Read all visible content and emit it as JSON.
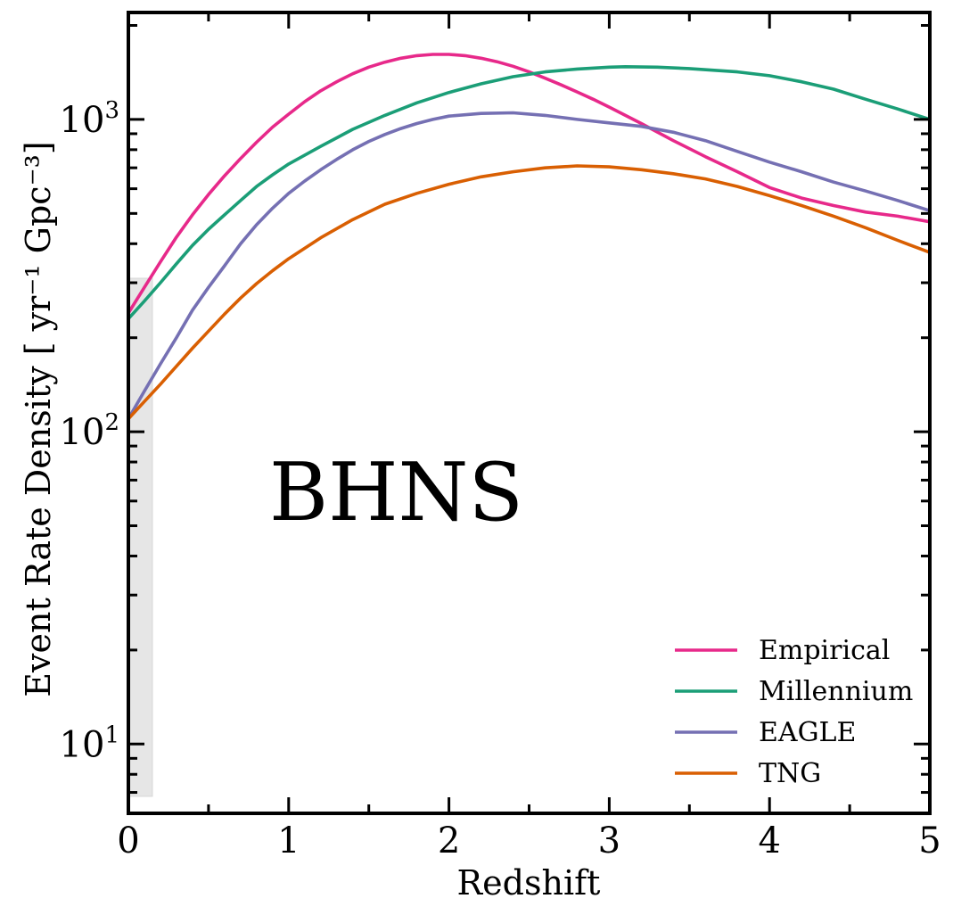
{
  "chart_data": {
    "type": "line",
    "title": "",
    "xlabel": "Redshift",
    "ylabel": "Event Rate Density [ yr⁻¹ Gpc⁻³]",
    "xlim": [
      0,
      5
    ],
    "ylim": [
      6,
      2200
    ],
    "yscale": "log",
    "grid": false,
    "legend_position": "bottom-right",
    "annotation": "BHNS",
    "x_ticks": [
      {
        "value": 0,
        "label": "0"
      },
      {
        "value": 1,
        "label": "1"
      },
      {
        "value": 2,
        "label": "2"
      },
      {
        "value": 3,
        "label": "3"
      },
      {
        "value": 4,
        "label": "4"
      },
      {
        "value": 5,
        "label": "5"
      }
    ],
    "y_ticks": [
      {
        "value": 10,
        "base": "10",
        "exp": "1"
      },
      {
        "value": 100,
        "base": "10",
        "exp": "2"
      },
      {
        "value": 1000,
        "base": "10",
        "exp": "3"
      }
    ],
    "shaded_region": {
      "x": [
        0,
        0.15
      ],
      "y": [
        6.8,
        310
      ],
      "color": "#e6e6e6"
    },
    "series": [
      {
        "name": "Empirical",
        "color": "#e7298a",
        "points": [
          [
            0,
            240
          ],
          [
            0.1,
            290
          ],
          [
            0.2,
            350
          ],
          [
            0.3,
            420
          ],
          [
            0.4,
            495
          ],
          [
            0.5,
            575
          ],
          [
            0.6,
            660
          ],
          [
            0.7,
            750
          ],
          [
            0.8,
            845
          ],
          [
            0.9,
            945
          ],
          [
            1.0,
            1040
          ],
          [
            1.1,
            1140
          ],
          [
            1.2,
            1235
          ],
          [
            1.3,
            1320
          ],
          [
            1.4,
            1400
          ],
          [
            1.5,
            1470
          ],
          [
            1.6,
            1525
          ],
          [
            1.7,
            1570
          ],
          [
            1.8,
            1600
          ],
          [
            1.9,
            1615
          ],
          [
            2.0,
            1615
          ],
          [
            2.1,
            1600
          ],
          [
            2.2,
            1570
          ],
          [
            2.3,
            1530
          ],
          [
            2.4,
            1480
          ],
          [
            2.5,
            1420
          ],
          [
            2.6,
            1355
          ],
          [
            2.7,
            1290
          ],
          [
            2.8,
            1225
          ],
          [
            2.9,
            1160
          ],
          [
            3.0,
            1095
          ],
          [
            3.2,
            970
          ],
          [
            3.4,
            855
          ],
          [
            3.6,
            760
          ],
          [
            3.8,
            680
          ],
          [
            4.0,
            605
          ],
          [
            4.2,
            560
          ],
          [
            4.4,
            530
          ],
          [
            4.6,
            505
          ],
          [
            4.8,
            490
          ],
          [
            5.0,
            470
          ]
        ]
      },
      {
        "name": "Millennium",
        "color": "#1b9e77",
        "points": [
          [
            0,
            230
          ],
          [
            0.1,
            262
          ],
          [
            0.2,
            300
          ],
          [
            0.3,
            345
          ],
          [
            0.4,
            395
          ],
          [
            0.5,
            445
          ],
          [
            0.6,
            495
          ],
          [
            0.7,
            550
          ],
          [
            0.8,
            610
          ],
          [
            0.9,
            665
          ],
          [
            1.0,
            720
          ],
          [
            1.2,
            820
          ],
          [
            1.4,
            930
          ],
          [
            1.6,
            1030
          ],
          [
            1.8,
            1130
          ],
          [
            2.0,
            1220
          ],
          [
            2.2,
            1300
          ],
          [
            2.4,
            1370
          ],
          [
            2.6,
            1420
          ],
          [
            2.8,
            1450
          ],
          [
            3.0,
            1470
          ],
          [
            3.1,
            1475
          ],
          [
            3.3,
            1470
          ],
          [
            3.5,
            1455
          ],
          [
            3.8,
            1420
          ],
          [
            4.0,
            1380
          ],
          [
            4.2,
            1320
          ],
          [
            4.4,
            1250
          ],
          [
            4.6,
            1160
          ],
          [
            4.8,
            1080
          ],
          [
            5.0,
            1000
          ]
        ]
      },
      {
        "name": "EAGLE",
        "color": "#7570b3",
        "points": [
          [
            0,
            110
          ],
          [
            0.1,
            135
          ],
          [
            0.2,
            165
          ],
          [
            0.3,
            200
          ],
          [
            0.4,
            245
          ],
          [
            0.5,
            290
          ],
          [
            0.6,
            340
          ],
          [
            0.7,
            400
          ],
          [
            0.8,
            460
          ],
          [
            0.9,
            520
          ],
          [
            1.0,
            580
          ],
          [
            1.1,
            635
          ],
          [
            1.2,
            690
          ],
          [
            1.3,
            745
          ],
          [
            1.4,
            800
          ],
          [
            1.5,
            850
          ],
          [
            1.6,
            895
          ],
          [
            1.7,
            935
          ],
          [
            1.8,
            970
          ],
          [
            1.9,
            1000
          ],
          [
            2.0,
            1025
          ],
          [
            2.2,
            1045
          ],
          [
            2.4,
            1050
          ],
          [
            2.6,
            1030
          ],
          [
            2.8,
            1000
          ],
          [
            3.0,
            975
          ],
          [
            3.2,
            950
          ],
          [
            3.4,
            910
          ],
          [
            3.6,
            855
          ],
          [
            3.8,
            790
          ],
          [
            4.0,
            730
          ],
          [
            4.2,
            680
          ],
          [
            4.4,
            630
          ],
          [
            4.6,
            590
          ],
          [
            4.8,
            550
          ],
          [
            5.0,
            510
          ]
        ]
      },
      {
        "name": "TNG",
        "color": "#d95f02",
        "points": [
          [
            0,
            110
          ],
          [
            0.1,
            125
          ],
          [
            0.2,
            142
          ],
          [
            0.3,
            162
          ],
          [
            0.4,
            185
          ],
          [
            0.5,
            210
          ],
          [
            0.6,
            238
          ],
          [
            0.7,
            268
          ],
          [
            0.8,
            298
          ],
          [
            0.9,
            328
          ],
          [
            1.0,
            358
          ],
          [
            1.2,
            418
          ],
          [
            1.4,
            478
          ],
          [
            1.6,
            535
          ],
          [
            1.8,
            580
          ],
          [
            2.0,
            620
          ],
          [
            2.2,
            655
          ],
          [
            2.4,
            680
          ],
          [
            2.6,
            700
          ],
          [
            2.8,
            710
          ],
          [
            3.0,
            705
          ],
          [
            3.2,
            690
          ],
          [
            3.4,
            670
          ],
          [
            3.6,
            645
          ],
          [
            3.8,
            610
          ],
          [
            4.0,
            570
          ],
          [
            4.2,
            530
          ],
          [
            4.4,
            490
          ],
          [
            4.6,
            450
          ],
          [
            4.8,
            410
          ],
          [
            5.0,
            375
          ]
        ]
      }
    ]
  }
}
